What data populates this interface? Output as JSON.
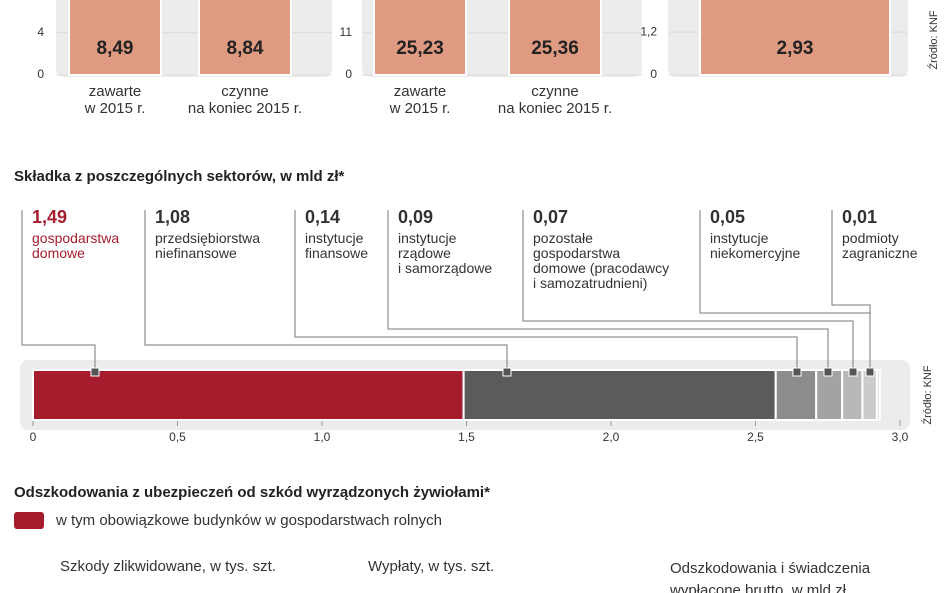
{
  "chart_data": [
    {
      "type": "bar",
      "categories": [
        "zawarte\nw 2015 r.",
        "czynne\nna koniec 2015 r."
      ],
      "values": [
        8.49,
        8.84
      ],
      "value_labels": [
        "8,49",
        "8,84"
      ],
      "color": "#df9a82",
      "ylim": [
        0,
        7.1
      ],
      "yticks": [
        0,
        4
      ],
      "grid": true
    },
    {
      "type": "bar",
      "categories": [
        "zawarte\nw 2015 r.",
        "czynne\nna koniec 2015 r."
      ],
      "values": [
        25.23,
        25.36
      ],
      "value_labels": [
        "25,23",
        "25,36"
      ],
      "color": "#df9a82",
      "ylim": [
        0,
        19.6
      ],
      "yticks": [
        0,
        11
      ],
      "grid": true
    },
    {
      "type": "bar",
      "categories": [
        null
      ],
      "values": [
        2.93
      ],
      "value_labels": [
        "2,93"
      ],
      "color": "#df9a82",
      "ylim": [
        0,
        2.1
      ],
      "yticks": [
        0,
        {
          "value": 1.2,
          "label": "1,2"
        }
      ],
      "grid": true,
      "source": "Źródło: KNF"
    },
    {
      "type": "stacked_hbar",
      "title": "Składka z poszczególnych sektorów, w mld zł*",
      "series": [
        {
          "name": "gospodarstwa\ndomowe",
          "color": "#a51d2d",
          "values": [
            1.49
          ],
          "value_labels": [
            "1,49"
          ]
        },
        {
          "name": "przedsiębiorstwa\nniefinansowe",
          "color": "#5b5b5b",
          "values": [
            1.08
          ],
          "value_labels": [
            "1,08"
          ]
        },
        {
          "name": "instytucje\nfinansowe",
          "color": "#8c8c8c",
          "values": [
            0.14
          ],
          "value_labels": [
            "0,14"
          ]
        },
        {
          "name": "instytucje\nrządowe\ni samorządowe",
          "color": "#a3a3a3",
          "values": [
            0.09
          ],
          "value_labels": [
            "0,09"
          ]
        },
        {
          "name": "pozostałe\ngospodarstwa\ndomowe (pracodawcy\ni samozatrudnieni)",
          "color": "#b8b8b8",
          "values": [
            0.07
          ],
          "value_labels": [
            "0,07"
          ]
        },
        {
          "name": "instytucje\nniekomercyjne",
          "color": "#cbcbcb",
          "values": [
            0.05
          ],
          "value_labels": [
            "0,05"
          ]
        },
        {
          "name": "podmioty\nzagraniczne",
          "color": "#dedede",
          "values": [
            0.01
          ],
          "value_labels": [
            "0,01"
          ]
        }
      ],
      "xlim": [
        0,
        3.0
      ],
      "xticks": [
        0,
        {
          "value": 0.5,
          "label": "0,5"
        },
        {
          "value": 1.0,
          "label": "1,0"
        },
        {
          "value": 1.5,
          "label": "1,5"
        },
        {
          "value": 2.0,
          "label": "2,0"
        },
        {
          "value": 2.5,
          "label": "2,5"
        },
        {
          "value": 3.0,
          "label": "3,0"
        }
      ],
      "source": "Źródło: KNF"
    }
  ],
  "damages": {
    "title": "Odszkodowania z ubezpieczeń od szkód wyrządzonych żywiołami*",
    "legend": {
      "label": "w tym obowiązkowe budynków w gospodarstwach rolnych",
      "color": "#a51d2d"
    },
    "panels": [
      "Szkody zlikwidowane, w tys. szt.",
      "Wypłaty, w tys. szt.",
      "Odszkodowania i świadczenia\nwypłacone brutto, w mld zł"
    ]
  }
}
